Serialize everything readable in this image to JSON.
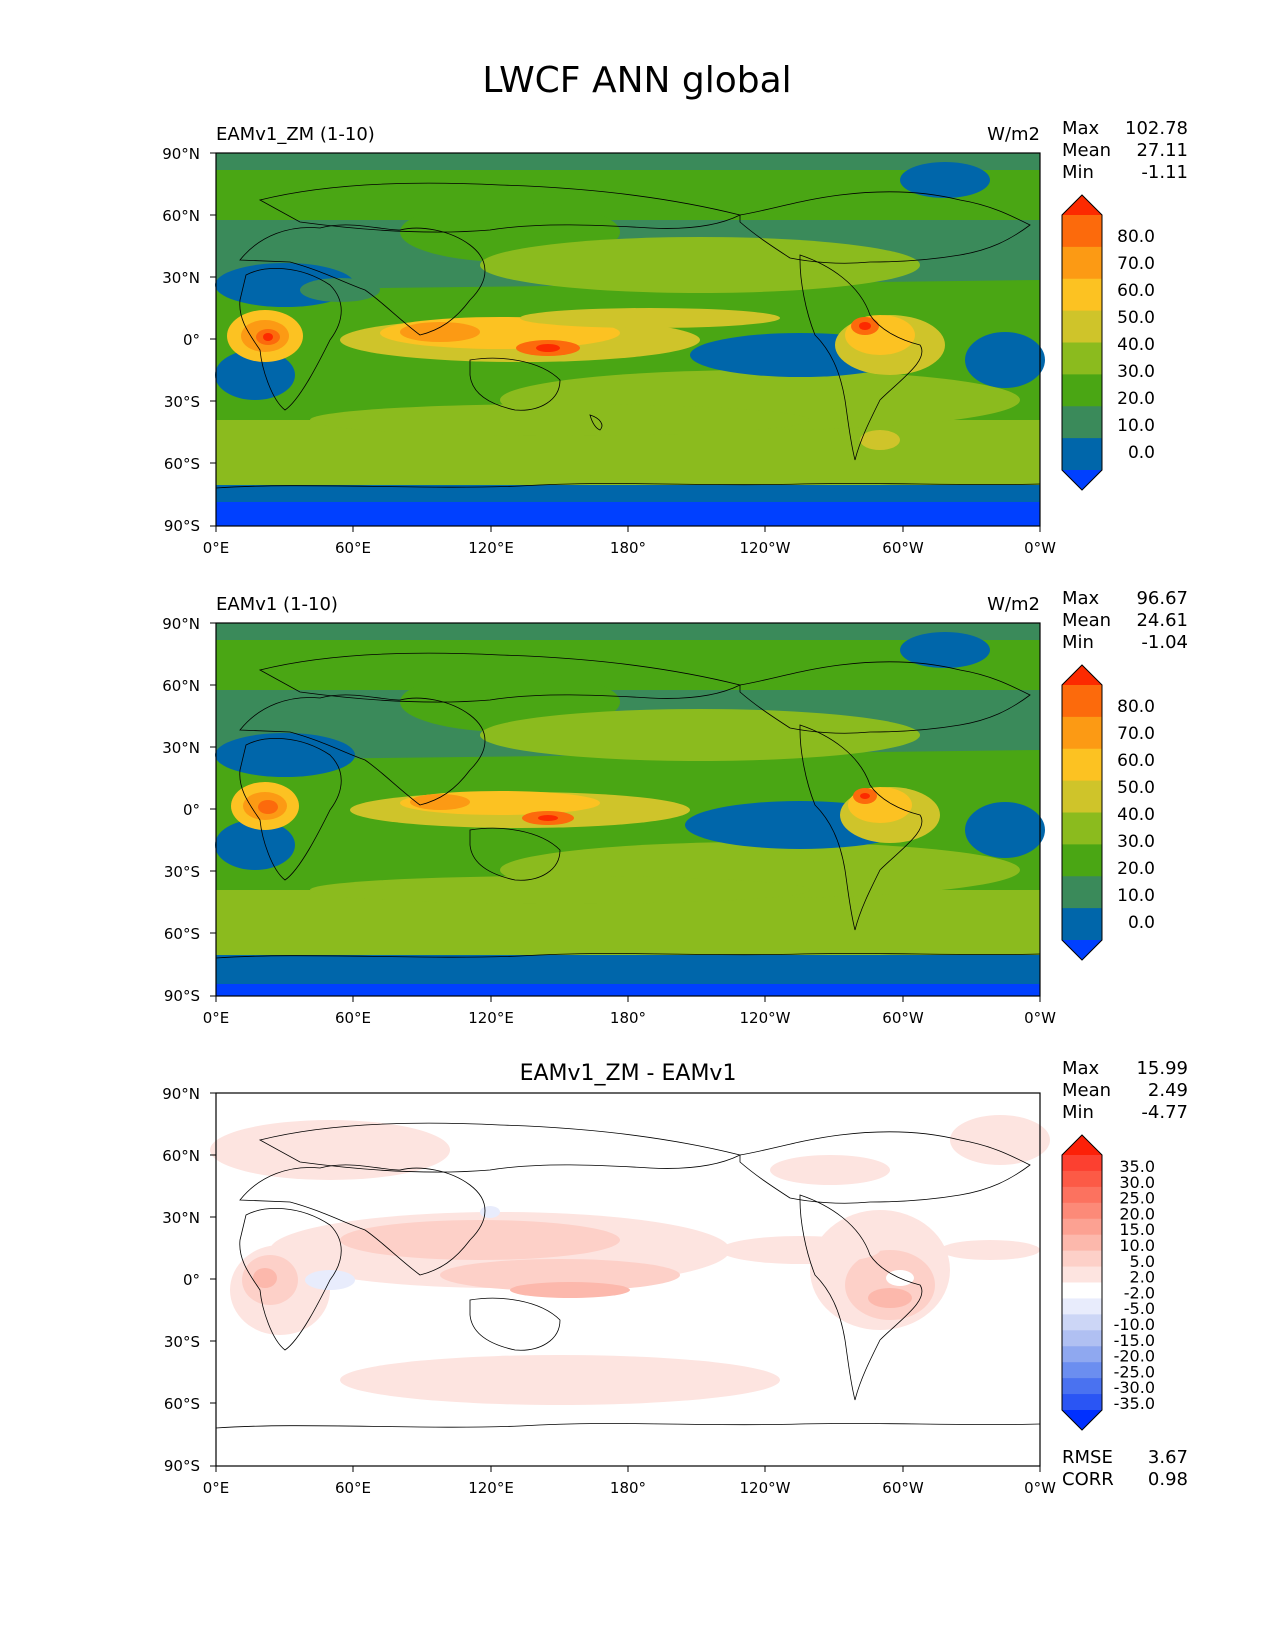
{
  "title": "LWCF ANN global",
  "panels": [
    {
      "id": "test",
      "label": "EAMv1_ZM (1-10)",
      "units": "W/m2",
      "stats": [
        {
          "name": "Max",
          "value": "102.78"
        },
        {
          "name": "Mean",
          "value": "27.11"
        },
        {
          "name": "Min",
          "value": "-1.11"
        }
      ],
      "colorbar": {
        "colors": [
          "#0040ff",
          "#0066aa",
          "#3a8a5a",
          "#4aa614",
          "#8bbb1e",
          "#cfc42a",
          "#fcc222",
          "#fc9a14",
          "#fc6a0c",
          "#fc2a00"
        ],
        "ticks": [
          "80.0",
          "70.0",
          "60.0",
          "50.0",
          "40.0",
          "30.0",
          "20.0",
          "10.0",
          "0.0"
        ]
      }
    },
    {
      "id": "ref",
      "label": "EAMv1 (1-10)",
      "units": "W/m2",
      "stats": [
        {
          "name": "Max",
          "value": "96.67"
        },
        {
          "name": "Mean",
          "value": "24.61"
        },
        {
          "name": "Min",
          "value": "-1.04"
        }
      ],
      "colorbar": {
        "colors": [
          "#0040ff",
          "#0066aa",
          "#3a8a5a",
          "#4aa614",
          "#8bbb1e",
          "#cfc42a",
          "#fcc222",
          "#fc9a14",
          "#fc6a0c",
          "#fc2a00"
        ],
        "ticks": [
          "80.0",
          "70.0",
          "60.0",
          "50.0",
          "40.0",
          "30.0",
          "20.0",
          "10.0",
          "0.0"
        ]
      }
    },
    {
      "id": "diff",
      "title": "EAMv1_ZM - EAMv1",
      "stats": [
        {
          "name": "Max",
          "value": "15.99"
        },
        {
          "name": "Mean",
          "value": "2.49"
        },
        {
          "name": "Min",
          "value": "-4.77"
        }
      ],
      "extra_stats": [
        {
          "name": "RMSE",
          "value": "3.67"
        },
        {
          "name": "CORR",
          "value": "0.98"
        }
      ],
      "colorbar": {
        "colors": [
          "#0030ff",
          "#2a55f4",
          "#4a72f0",
          "#6b8ef0",
          "#8fa8f0",
          "#b0c0f2",
          "#ccd6f6",
          "#e8ecfc",
          "#ffffff",
          "#fde4e0",
          "#fdd0c8",
          "#fcb8ac",
          "#fca192",
          "#fc8a78",
          "#fc725f",
          "#fc5a46",
          "#fc4030",
          "#fc2008"
        ],
        "ticks": [
          "35.0",
          "30.0",
          "25.0",
          "20.0",
          "15.0",
          "10.0",
          "5.0",
          "2.0",
          "-2.0",
          "-5.0",
          "-10.0",
          "-15.0",
          "-20.0",
          "-25.0",
          "-30.0",
          "-35.0"
        ]
      }
    }
  ],
  "axes": {
    "lat_ticks": [
      "90°N",
      "60°N",
      "30°N",
      "0°",
      "30°S",
      "60°S",
      "90°S"
    ],
    "lon_ticks": [
      "0°E",
      "60°E",
      "120°E",
      "180°",
      "120°W",
      "60°W",
      "0°W"
    ]
  }
}
